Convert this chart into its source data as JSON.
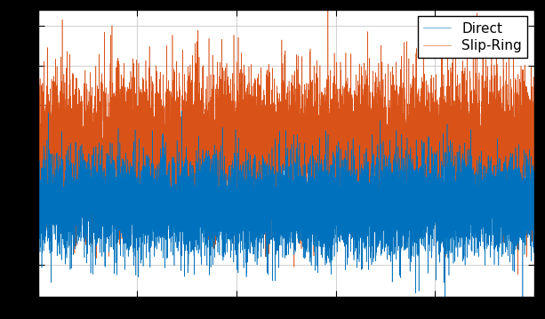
{
  "n_points": 10000,
  "direct_mean": -0.25,
  "direct_std": 0.3,
  "slipring_mean": 0.5,
  "slipring_std": 0.42,
  "slipring_spike_prob": 0.003,
  "slipring_spike_scale": 1.2,
  "ylim": [
    -1.4,
    2.2
  ],
  "xlim_min": 0,
  "xlim_max": 10000,
  "color_direct": "#0072BD",
  "color_slipring": "#D95319",
  "legend_labels": [
    "Direct",
    "Slip-Ring"
  ],
  "bg_color": "#FFFFFF",
  "outer_bg": "#000000",
  "grid_color": "#BEBEBE",
  "legend_fontsize": 11,
  "linewidth": 0.4,
  "seed": 42,
  "figwidth": 6.13,
  "figheight": 3.59,
  "dpi": 100
}
